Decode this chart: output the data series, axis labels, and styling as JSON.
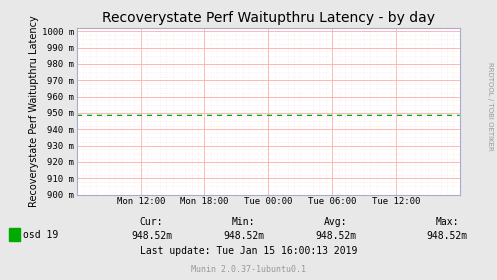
{
  "title": "Recoverystate Perf Waitupthru Latency - by day",
  "ylabel": "Recoverystate Perf Waitupthru Latency",
  "right_label": "RRDTOOL / TOBI OETIKER",
  "bg_color": "#e8e8e8",
  "plot_bg_color": "#ffffff",
  "grid_major_color": "#ffaaaa",
  "grid_minor_color": "#ffdddd",
  "line_color": "#00aa00",
  "line_value": 948.52,
  "ylim_min": 900,
  "ylim_max": 1000,
  "yticks": [
    900,
    910,
    920,
    930,
    940,
    950,
    960,
    970,
    980,
    990,
    1000
  ],
  "ytick_labels": [
    "900 m",
    "910 m",
    "920 m",
    "930 m",
    "940 m",
    "950 m",
    "960 m",
    "970 m",
    "980 m",
    "990 m",
    "1000 m"
  ],
  "xtick_labels": [
    "Mon 12:00",
    "Mon 18:00",
    "Tue 00:00",
    "Tue 06:00",
    "Tue 12:00"
  ],
  "xtick_positions": [
    0.167,
    0.333,
    0.5,
    0.667,
    0.833
  ],
  "legend_label": "osd 19",
  "legend_color": "#00aa00",
  "cur_val": "948.52m",
  "min_val": "948.52m",
  "avg_val": "948.52m",
  "max_val": "948.52m",
  "last_update": "Last update: Tue Jan 15 16:00:13 2019",
  "munin_label": "Munin 2.0.37-1ubuntu0.1",
  "title_fontsize": 10,
  "ylabel_fontsize": 7,
  "tick_fontsize": 6.5,
  "stats_fontsize": 7,
  "small_fontsize": 6,
  "spine_color": "#aaaacc"
}
